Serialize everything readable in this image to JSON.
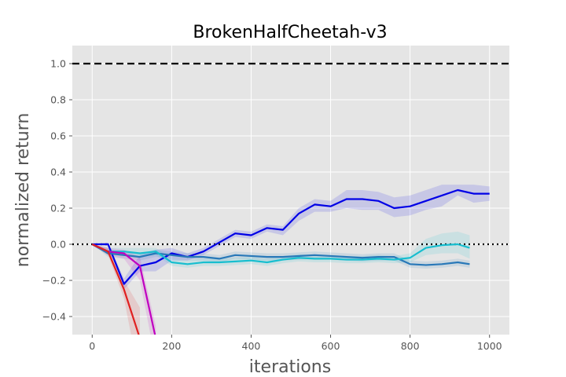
{
  "chart_data": {
    "type": "line",
    "title": "BrokenHalfCheetah-v3",
    "xlabel": "iterations",
    "ylabel": "normalized return",
    "xlim": [
      -50,
      1050
    ],
    "ylim": [
      -0.5,
      1.1
    ],
    "x_ticks": [
      0,
      200,
      400,
      600,
      800,
      1000
    ],
    "y_ticks": [
      -0.4,
      -0.2,
      0.0,
      0.2,
      0.4,
      0.6,
      0.8,
      1.0
    ],
    "x_tick_labels": [
      "0",
      "200",
      "400",
      "600",
      "800",
      "1000"
    ],
    "y_tick_labels": [
      "−0.4",
      "−0.2",
      "0.0",
      "0.2",
      "0.4",
      "0.6",
      "0.8",
      "1.0"
    ],
    "grid": true,
    "background": "#e5e5e5",
    "reference_lines": [
      {
        "y": 1.0,
        "style": "dashed",
        "color": "#000000"
      },
      {
        "y": 0.0,
        "style": "dotted",
        "color": "#000000"
      }
    ],
    "series": [
      {
        "color": "#0000e6",
        "band_color": "#0000e6",
        "x": [
          0,
          40,
          80,
          120,
          160,
          200,
          240,
          280,
          320,
          360,
          400,
          440,
          480,
          520,
          560,
          600,
          640,
          680,
          720,
          760,
          800,
          840,
          880,
          920,
          960,
          1000
        ],
        "y": [
          0.0,
          0.0,
          -0.22,
          -0.12,
          -0.1,
          -0.05,
          -0.07,
          -0.04,
          0.01,
          0.06,
          0.05,
          0.09,
          0.08,
          0.17,
          0.22,
          0.21,
          0.25,
          0.25,
          0.24,
          0.2,
          0.21,
          0.24,
          0.27,
          0.3,
          0.28,
          0.28
        ],
        "band": [
          [
            0.0,
            0.0
          ],
          [
            -0.01,
            0.01
          ],
          [
            -0.25,
            -0.19
          ],
          [
            -0.15,
            -0.06
          ],
          [
            -0.15,
            -0.03
          ],
          [
            -0.09,
            -0.02
          ],
          [
            -0.09,
            -0.05
          ],
          [
            -0.06,
            -0.02
          ],
          [
            -0.01,
            0.03
          ],
          [
            0.04,
            0.08
          ],
          [
            0.03,
            0.07
          ],
          [
            0.07,
            0.11
          ],
          [
            0.05,
            0.1
          ],
          [
            0.13,
            0.2
          ],
          [
            0.18,
            0.25
          ],
          [
            0.18,
            0.24
          ],
          [
            0.2,
            0.3
          ],
          [
            0.19,
            0.3
          ],
          [
            0.19,
            0.29
          ],
          [
            0.15,
            0.26
          ],
          [
            0.16,
            0.27
          ],
          [
            0.19,
            0.3
          ],
          [
            0.21,
            0.33
          ],
          [
            0.27,
            0.33
          ],
          [
            0.23,
            0.33
          ],
          [
            0.24,
            0.32
          ]
        ]
      },
      {
        "color": "#2878b8",
        "band_color": "#2878b8",
        "x": [
          0,
          40,
          80,
          120,
          160,
          200,
          240,
          280,
          320,
          360,
          400,
          440,
          480,
          520,
          560,
          600,
          640,
          680,
          720,
          760,
          800,
          840,
          880,
          920,
          950
        ],
        "y": [
          0.0,
          -0.05,
          -0.06,
          -0.07,
          -0.05,
          -0.06,
          -0.07,
          -0.07,
          -0.08,
          -0.06,
          -0.065,
          -0.07,
          -0.07,
          -0.065,
          -0.06,
          -0.065,
          -0.07,
          -0.075,
          -0.07,
          -0.07,
          -0.11,
          -0.115,
          -0.11,
          -0.1,
          -0.11
        ],
        "band": [
          [
            0.0,
            0.0
          ],
          [
            -0.07,
            -0.03
          ],
          [
            -0.08,
            -0.04
          ],
          [
            -0.09,
            -0.05
          ],
          [
            -0.07,
            -0.03
          ],
          [
            -0.08,
            -0.04
          ],
          [
            -0.09,
            -0.05
          ],
          [
            -0.09,
            -0.05
          ],
          [
            -0.1,
            -0.06
          ],
          [
            -0.08,
            -0.04
          ],
          [
            -0.085,
            -0.045
          ],
          [
            -0.09,
            -0.05
          ],
          [
            -0.09,
            -0.05
          ],
          [
            -0.085,
            -0.045
          ],
          [
            -0.08,
            -0.04
          ],
          [
            -0.085,
            -0.045
          ],
          [
            -0.09,
            -0.05
          ],
          [
            -0.095,
            -0.055
          ],
          [
            -0.09,
            -0.05
          ],
          [
            -0.09,
            -0.05
          ],
          [
            -0.13,
            -0.09
          ],
          [
            -0.135,
            -0.095
          ],
          [
            -0.13,
            -0.09
          ],
          [
            -0.12,
            -0.08
          ],
          [
            -0.13,
            -0.09
          ]
        ]
      },
      {
        "color": "#17becf",
        "band_color": "#17becf",
        "x": [
          0,
          40,
          80,
          120,
          160,
          200,
          240,
          280,
          320,
          360,
          400,
          440,
          480,
          520,
          560,
          600,
          640,
          680,
          720,
          760,
          800,
          840,
          880,
          920,
          950
        ],
        "y": [
          0.0,
          -0.04,
          -0.04,
          -0.05,
          -0.04,
          -0.1,
          -0.11,
          -0.1,
          -0.1,
          -0.095,
          -0.09,
          -0.1,
          -0.085,
          -0.075,
          -0.08,
          -0.08,
          -0.085,
          -0.085,
          -0.08,
          -0.085,
          -0.075,
          -0.02,
          -0.005,
          0.0,
          -0.02
        ],
        "band": [
          [
            0.0,
            0.0
          ],
          [
            -0.06,
            -0.02
          ],
          [
            -0.06,
            -0.02
          ],
          [
            -0.07,
            -0.02
          ],
          [
            -0.06,
            -0.02
          ],
          [
            -0.12,
            -0.08
          ],
          [
            -0.13,
            -0.09
          ],
          [
            -0.12,
            -0.08
          ],
          [
            -0.12,
            -0.08
          ],
          [
            -0.115,
            -0.075
          ],
          [
            -0.11,
            -0.07
          ],
          [
            -0.12,
            -0.08
          ],
          [
            -0.105,
            -0.065
          ],
          [
            -0.095,
            -0.055
          ],
          [
            -0.1,
            -0.06
          ],
          [
            -0.1,
            -0.06
          ],
          [
            -0.105,
            -0.065
          ],
          [
            -0.105,
            -0.065
          ],
          [
            -0.1,
            -0.06
          ],
          [
            -0.105,
            -0.065
          ],
          [
            -0.1,
            -0.05
          ],
          [
            -0.06,
            0.03
          ],
          [
            -0.05,
            0.06
          ],
          [
            -0.05,
            0.07
          ],
          [
            -0.08,
            0.05
          ]
        ]
      },
      {
        "color": "#c000c0",
        "band_color": "#c000c0",
        "x": [
          0,
          40,
          80,
          120,
          160
        ],
        "y": [
          0.0,
          -0.04,
          -0.05,
          -0.12,
          -0.52
        ],
        "band": [
          [
            0.0,
            0.0
          ],
          [
            -0.06,
            -0.02
          ],
          [
            -0.08,
            -0.03
          ],
          [
            -0.2,
            -0.07
          ],
          [
            -0.65,
            -0.45
          ]
        ]
      },
      {
        "color": "#e02020",
        "band_color": "#e02020",
        "x": [
          0,
          40,
          80,
          120
        ],
        "y": [
          0.0,
          -0.04,
          -0.25,
          -0.52
        ],
        "band": [
          [
            0.0,
            0.0
          ],
          [
            -0.06,
            -0.02
          ],
          [
            -0.3,
            -0.2
          ],
          [
            -0.75,
            -0.35
          ]
        ]
      }
    ]
  }
}
